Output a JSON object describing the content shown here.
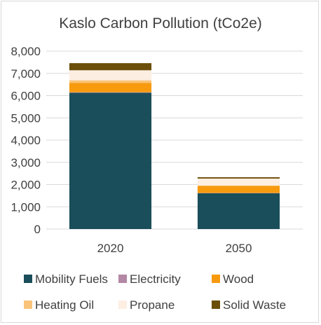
{
  "chart_data": {
    "type": "bar",
    "stacked": true,
    "title": "Kaslo Carbon Pollution (tCo2e)",
    "xlabel": "",
    "ylabel": "",
    "categories": [
      "2020",
      "2050"
    ],
    "ylim": [
      0,
      8000
    ],
    "yticks": [
      0,
      1000,
      2000,
      3000,
      4000,
      5000,
      6000,
      7000,
      8000
    ],
    "ytick_labels": [
      "0",
      "1,000",
      "2,000",
      "3,000",
      "4,000",
      "5,000",
      "6,000",
      "7,000",
      "8,000"
    ],
    "grid": true,
    "legend_position": "bottom",
    "series": [
      {
        "name": "Mobility Fuels",
        "color": "#1a4e5a",
        "values": [
          6130,
          1610
        ]
      },
      {
        "name": "Electricity",
        "color": "#b487a5",
        "values": [
          20,
          10
        ]
      },
      {
        "name": "Wood",
        "color": "#f79a0e",
        "values": [
          420,
          320
        ]
      },
      {
        "name": "Heating Oil",
        "color": "#f9c47a",
        "values": [
          120,
          20
        ]
      },
      {
        "name": "Propane",
        "color": "#fdeee2",
        "values": [
          450,
          310
        ]
      },
      {
        "name": "Solid Waste",
        "color": "#6b4e0a",
        "values": [
          320,
          60
        ]
      }
    ]
  }
}
